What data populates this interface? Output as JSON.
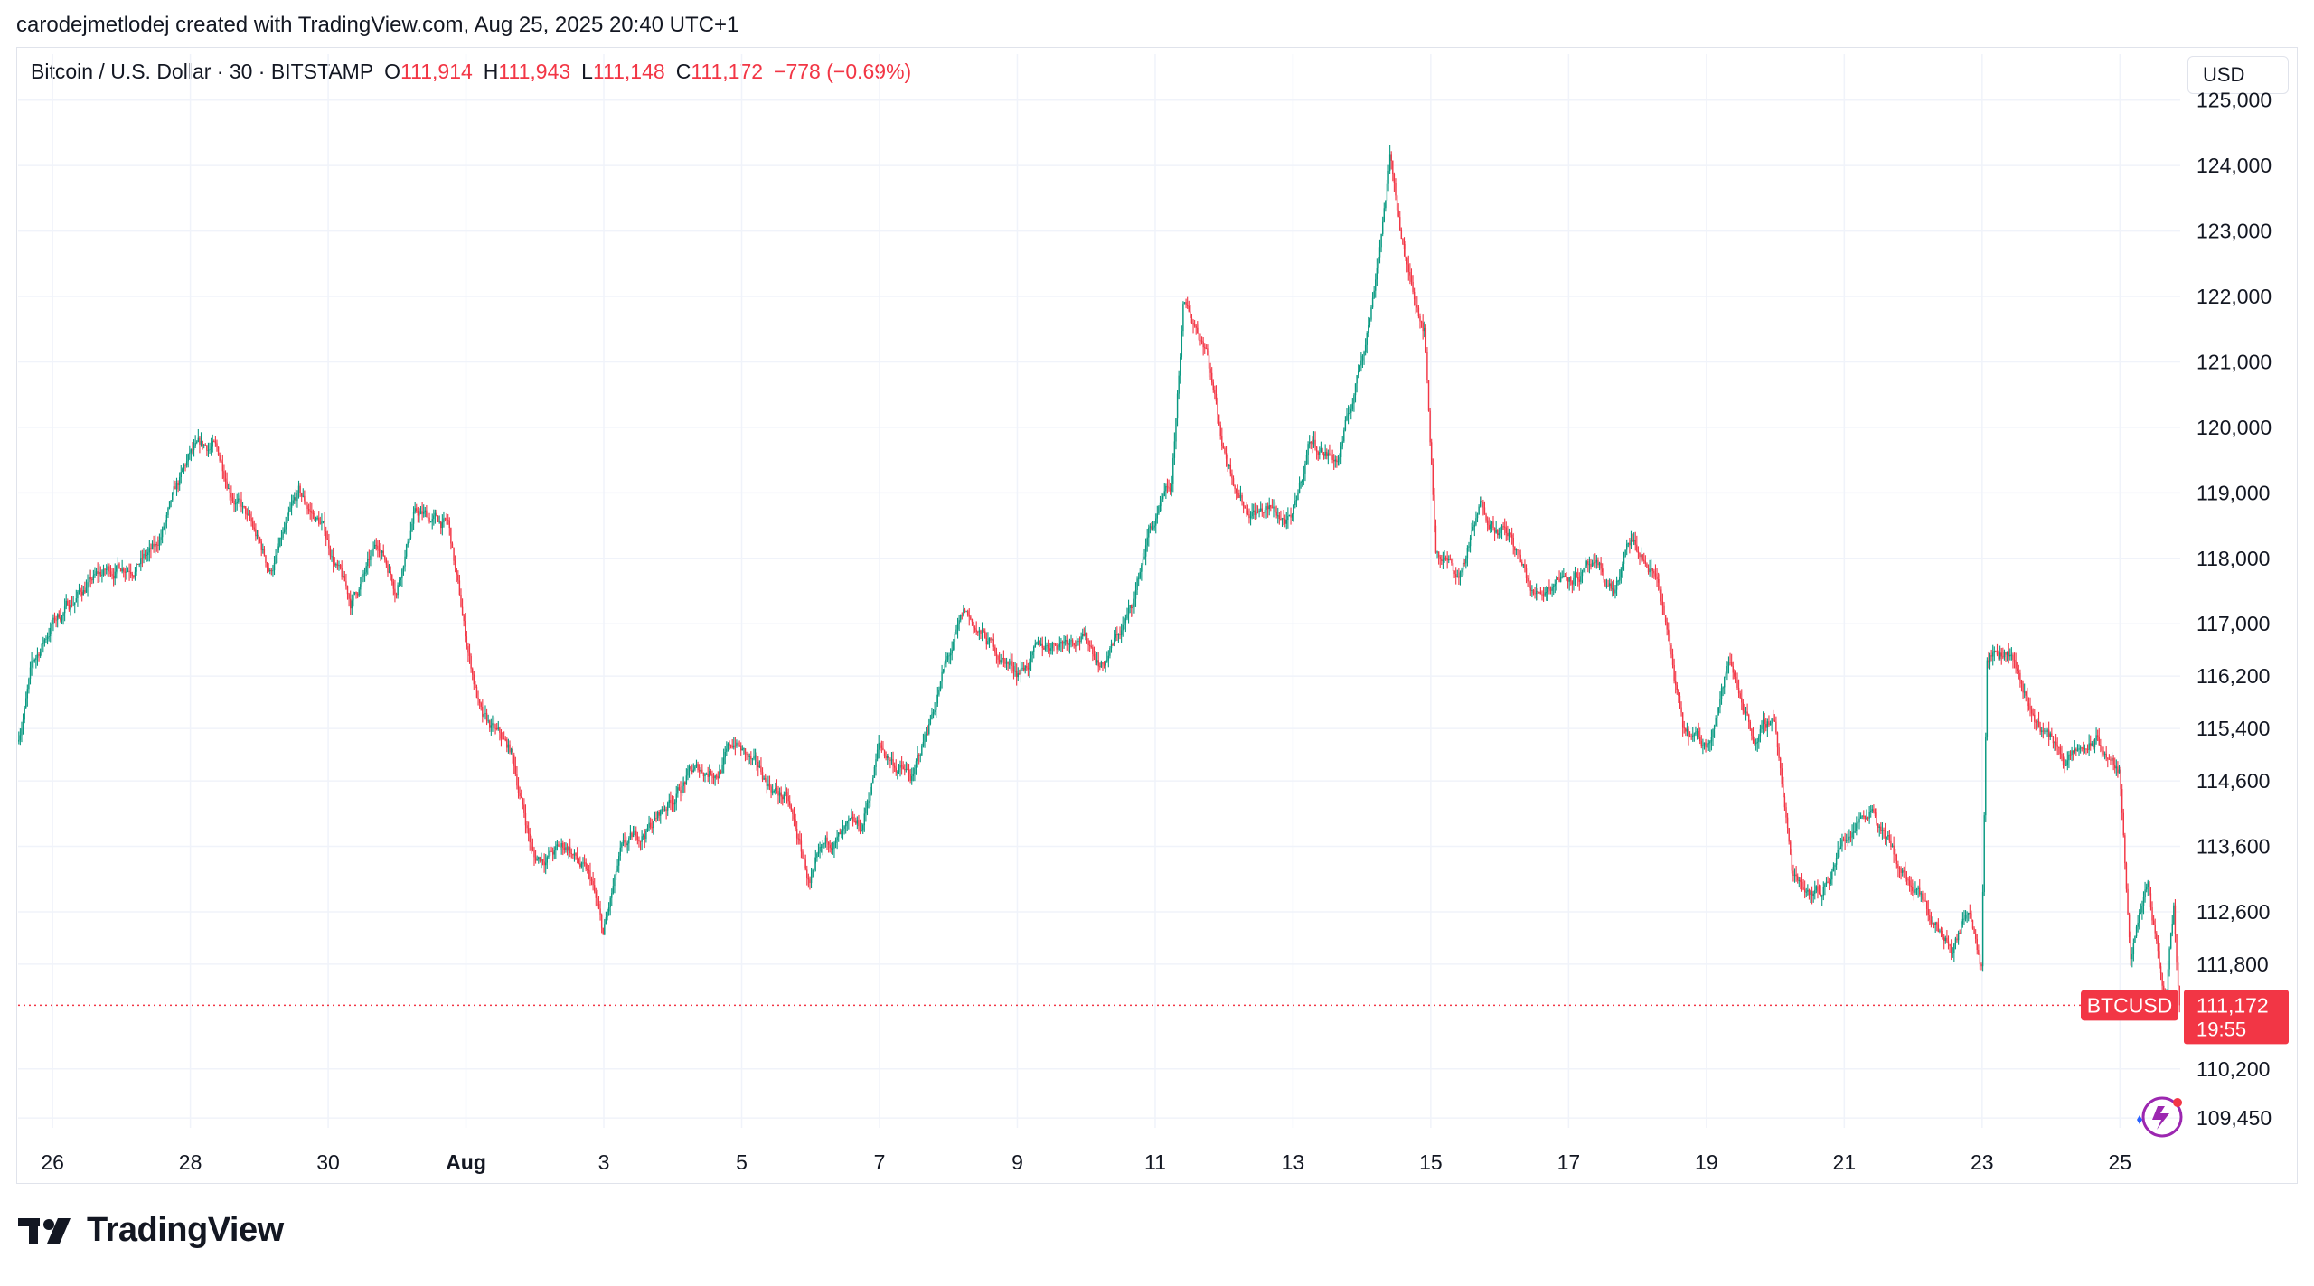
{
  "caption": "carodejmetlodej created with TradingView.com, Aug 25, 2025 20:40 UTC+1",
  "legend": {
    "symbol": "Bitcoin / U.S. Dollar · 30 · BITSTAMP",
    "o_label": "O",
    "o_value": "111,914",
    "h_label": "H",
    "h_value": "111,943",
    "l_label": "L",
    "l_value": "111,148",
    "c_label": "C",
    "c_value": "111,172",
    "change": "−778 (−0.69%)"
  },
  "currency": "USD",
  "brand": "TradingView",
  "colors": {
    "up": "#089981",
    "down": "#f23645",
    "grid": "#f0f3fa",
    "text": "#131722"
  },
  "chart_data": {
    "type": "candlestick",
    "symbol": "BTCUSD",
    "interval": "30",
    "exchange": "BITSTAMP",
    "current_price": 111172,
    "price_label": "111,172",
    "countdown": "19:55",
    "symbol_tag": "BTCUSD",
    "ylim": [
      109300,
      125700
    ],
    "y_ticks": [
      125000,
      124000,
      123000,
      122000,
      121000,
      120000,
      119000,
      118000,
      117000,
      116200,
      115400,
      114600,
      113600,
      112600,
      111800,
      110200,
      109450
    ],
    "y_tick_labels": [
      "125,000",
      "124,000",
      "123,000",
      "122,000",
      "121,000",
      "120,000",
      "119,000",
      "118,000",
      "117,000",
      "116,200",
      "115,400",
      "114,600",
      "113,600",
      "112,600",
      "111,800",
      "110,200",
      "109,450"
    ],
    "x_range": [
      "2025-07-25T12:00",
      "2025-08-25T21:00"
    ],
    "x_ticks": [
      "2025-07-26",
      "2025-07-28",
      "2025-07-30",
      "2025-08-01",
      "2025-08-03",
      "2025-08-05",
      "2025-08-07",
      "2025-08-09",
      "2025-08-11",
      "2025-08-13",
      "2025-08-15",
      "2025-08-17",
      "2025-08-19",
      "2025-08-21",
      "2025-08-23",
      "2025-08-25"
    ],
    "x_tick_labels": [
      "26",
      "28",
      "30",
      "Aug",
      "3",
      "5",
      "7",
      "9",
      "11",
      "13",
      "15",
      "17",
      "19",
      "21",
      "23",
      "25"
    ],
    "x_tick_bold": [
      false,
      false,
      false,
      true,
      false,
      false,
      false,
      false,
      false,
      false,
      false,
      false,
      false,
      false,
      false,
      false
    ],
    "path": [
      [
        "2025-07-25T12:00",
        115200
      ],
      [
        "2025-07-25T17:00",
        116300
      ],
      [
        "2025-07-26T00:00",
        117000
      ],
      [
        "2025-07-26T12:00",
        117600
      ],
      [
        "2025-07-27T00:00",
        117900
      ],
      [
        "2025-07-27T12:00",
        118100
      ],
      [
        "2025-07-28T00:00",
        119500
      ],
      [
        "2025-07-28T08:00",
        119700
      ],
      [
        "2025-07-28T18:00",
        118800
      ],
      [
        "2025-07-29T04:00",
        117800
      ],
      [
        "2025-07-29T14:00",
        118900
      ],
      [
        "2025-07-29T22:00",
        118500
      ],
      [
        "2025-07-30T08:00",
        117300
      ],
      [
        "2025-07-30T18:00",
        118200
      ],
      [
        "2025-07-31T00:00",
        117600
      ],
      [
        "2025-07-31T06:00",
        118700
      ],
      [
        "2025-07-31T18:00",
        118500
      ],
      [
        "2025-08-01T00:00",
        116800
      ],
      [
        "2025-08-01T06:00",
        115500
      ],
      [
        "2025-08-01T16:00",
        115000
      ],
      [
        "2025-08-02T00:00",
        113400
      ],
      [
        "2025-08-02T12:00",
        113600
      ],
      [
        "2025-08-02T20:00",
        113000
      ],
      [
        "2025-08-03T00:00",
        112200
      ],
      [
        "2025-08-03T06:00",
        113400
      ],
      [
        "2025-08-03T18:00",
        114000
      ],
      [
        "2025-08-04T06:00",
        114700
      ],
      [
        "2025-08-04T16:00",
        114800
      ],
      [
        "2025-08-04T22:00",
        115200
      ],
      [
        "2025-08-05T06:00",
        114700
      ],
      [
        "2025-08-05T16:00",
        114300
      ],
      [
        "2025-08-06T00:00",
        113000
      ],
      [
        "2025-08-06T08:00",
        113700
      ],
      [
        "2025-08-06T18:00",
        113800
      ],
      [
        "2025-08-07T00:00",
        115100
      ],
      [
        "2025-08-07T12:00",
        114600
      ],
      [
        "2025-08-07T22:00",
        116200
      ],
      [
        "2025-08-08T06:00",
        117100
      ],
      [
        "2025-08-08T16:00",
        116600
      ],
      [
        "2025-08-09T00:00",
        116300
      ],
      [
        "2025-08-09T12:00",
        116700
      ],
      [
        "2025-08-09T22:00",
        116900
      ],
      [
        "2025-08-10T06:00",
        116400
      ],
      [
        "2025-08-10T16:00",
        117200
      ],
      [
        "2025-08-10T22:00",
        118400
      ],
      [
        "2025-08-11T06:00",
        119000
      ],
      [
        "2025-08-11T10:00",
        121800
      ],
      [
        "2025-08-11T18:00",
        121300
      ],
      [
        "2025-08-12T00:00",
        119700
      ],
      [
        "2025-08-12T08:00",
        118800
      ],
      [
        "2025-08-12T18:00",
        118700
      ],
      [
        "2025-08-13T00:00",
        118500
      ],
      [
        "2025-08-13T06:00",
        119800
      ],
      [
        "2025-08-13T16:00",
        119500
      ],
      [
        "2025-08-13T22:00",
        120600
      ],
      [
        "2025-08-14T04:00",
        122000
      ],
      [
        "2025-08-14T10:00",
        124100
      ],
      [
        "2025-08-14T16:00",
        122400
      ],
      [
        "2025-08-14T22:00",
        121600
      ],
      [
        "2025-08-15T02:00",
        118200
      ],
      [
        "2025-08-15T10:00",
        117700
      ],
      [
        "2025-08-15T18:00",
        118800
      ],
      [
        "2025-08-16T04:00",
        118300
      ],
      [
        "2025-08-16T12:00",
        117400
      ],
      [
        "2025-08-16T22:00",
        117800
      ],
      [
        "2025-08-17T08:00",
        117800
      ],
      [
        "2025-08-17T16:00",
        117500
      ],
      [
        "2025-08-17T22:00",
        118200
      ],
      [
        "2025-08-18T08:00",
        117600
      ],
      [
        "2025-08-18T16:00",
        115300
      ],
      [
        "2025-08-19T00:00",
        115100
      ],
      [
        "2025-08-19T08:00",
        116400
      ],
      [
        "2025-08-19T18:00",
        115200
      ],
      [
        "2025-08-20T00:00",
        115600
      ],
      [
        "2025-08-20T06:00",
        113200
      ],
      [
        "2025-08-20T16:00",
        112900
      ],
      [
        "2025-08-21T00:00",
        113700
      ],
      [
        "2025-08-21T10:00",
        114300
      ],
      [
        "2025-08-21T20:00",
        113200
      ],
      [
        "2025-08-22T06:00",
        112500
      ],
      [
        "2025-08-22T14:00",
        112000
      ],
      [
        "2025-08-22T20:00",
        112700
      ],
      [
        "2025-08-23T00:00",
        111900
      ],
      [
        "2025-08-23T02:00",
        116700
      ],
      [
        "2025-08-23T10:00",
        116600
      ],
      [
        "2025-08-23T18:00",
        115600
      ],
      [
        "2025-08-24T06:00",
        114900
      ],
      [
        "2025-08-24T16:00",
        115200
      ],
      [
        "2025-08-25T00:00",
        114700
      ],
      [
        "2025-08-25T04:00",
        112000
      ],
      [
        "2025-08-25T10:00",
        112900
      ],
      [
        "2025-08-25T16:00",
        111100
      ],
      [
        "2025-08-25T19:00",
        112600
      ],
      [
        "2025-08-25T21:00",
        111172
      ]
    ]
  }
}
